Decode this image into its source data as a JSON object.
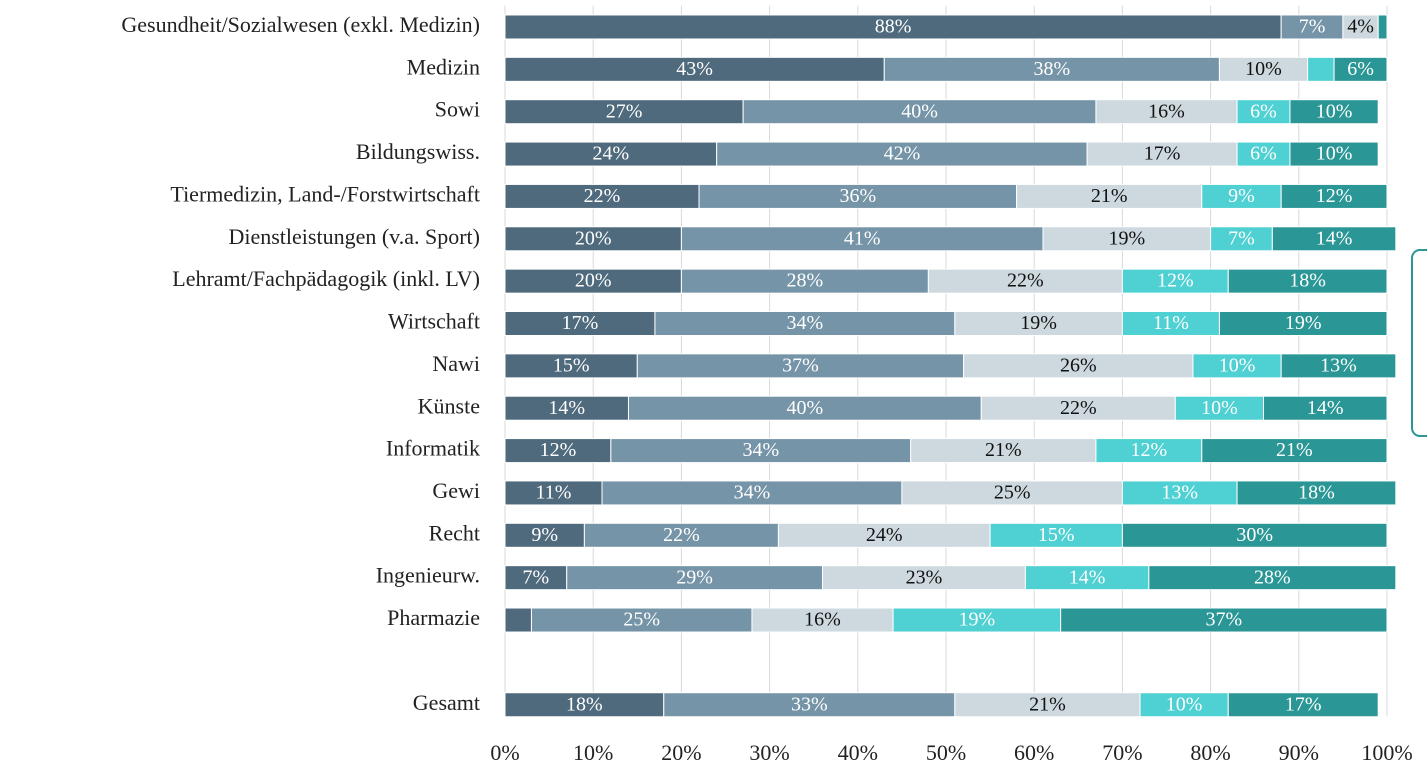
{
  "chart_data": {
    "type": "stacked_barh",
    "categories": [
      "Gesundheit/Sozialwesen (exkl. Medizin)",
      "Medizin",
      "Sowi",
      "Bildungswiss.",
      "Tiermedizin, Land-/Forstwirtschaft",
      "Dienstleistungen (v.a. Sport)",
      "Lehramt/Fachpädagogik (inkl. LV)",
      "Wirtschaft",
      "Nawi",
      "Künste",
      "Informatik",
      "Gewi",
      "Recht",
      "Ingenieurw.",
      "Pharmazie",
      null,
      "Gesamt"
    ],
    "series": [
      {
        "color": "#4f6a7d",
        "values": [
          88,
          43,
          27,
          24,
          22,
          20,
          20,
          17,
          15,
          14,
          12,
          11,
          9,
          7,
          3,
          null,
          18
        ],
        "value_labels": [
          "88%",
          "43%",
          "27%",
          "24%",
          "22%",
          "20%",
          "20%",
          "17%",
          "15%",
          "14%",
          "12%",
          "11%",
          "9%",
          "7%",
          null,
          null,
          "18%"
        ]
      },
      {
        "color": "#7594a7",
        "values": [
          7,
          38,
          40,
          42,
          36,
          41,
          28,
          34,
          37,
          40,
          34,
          34,
          22,
          29,
          25,
          null,
          33
        ],
        "value_labels": [
          "7%",
          "38%",
          "40%",
          "42%",
          "36%",
          "41%",
          "28%",
          "34%",
          "37%",
          "40%",
          "34%",
          "34%",
          "22%",
          "29%",
          "25%",
          null,
          "33%"
        ]
      },
      {
        "color": "#cdd8df",
        "values": [
          4,
          10,
          16,
          17,
          21,
          19,
          22,
          19,
          26,
          22,
          21,
          25,
          24,
          23,
          16,
          null,
          21
        ],
        "value_labels": [
          "4%",
          "10%",
          "16%",
          "17%",
          "21%",
          "19%",
          "22%",
          "19%",
          "26%",
          "22%",
          "21%",
          "25%",
          "24%",
          "23%",
          "16%",
          null,
          "21%"
        ]
      },
      {
        "color": "#4fd0d2",
        "values": [
          0,
          3,
          6,
          6,
          9,
          7,
          12,
          11,
          10,
          10,
          12,
          13,
          15,
          14,
          19,
          null,
          10
        ],
        "value_labels": [
          null,
          null,
          "6%",
          "6%",
          "9%",
          "7%",
          "12%",
          "11%",
          "10%",
          "10%",
          "12%",
          "13%",
          "15%",
          "14%",
          "19%",
          null,
          "10%"
        ]
      },
      {
        "color": "#2a9695",
        "values": [
          1,
          6,
          10,
          10,
          12,
          14,
          18,
          19,
          13,
          14,
          21,
          18,
          30,
          28,
          37,
          null,
          17
        ],
        "value_labels": [
          null,
          "6%",
          "10%",
          "10%",
          "12%",
          "14%",
          "18%",
          "19%",
          "13%",
          "14%",
          "21%",
          "18%",
          "30%",
          "28%",
          "37%",
          null,
          "17%"
        ]
      }
    ],
    "xlim": [
      0,
      100
    ],
    "xticks": [
      {
        "value": 0,
        "label": "0%"
      },
      {
        "value": 10,
        "label": "10%"
      },
      {
        "value": 20,
        "label": "20%"
      },
      {
        "value": 30,
        "label": "30%"
      },
      {
        "value": 40,
        "label": "40%"
      },
      {
        "value": 50,
        "label": "50%"
      },
      {
        "value": 60,
        "label": "60%"
      },
      {
        "value": 70,
        "label": "70%"
      },
      {
        "value": 80,
        "label": "80%"
      },
      {
        "value": 90,
        "label": "90%"
      },
      {
        "value": 100,
        "label": "100%"
      }
    ],
    "grid": true
  }
}
